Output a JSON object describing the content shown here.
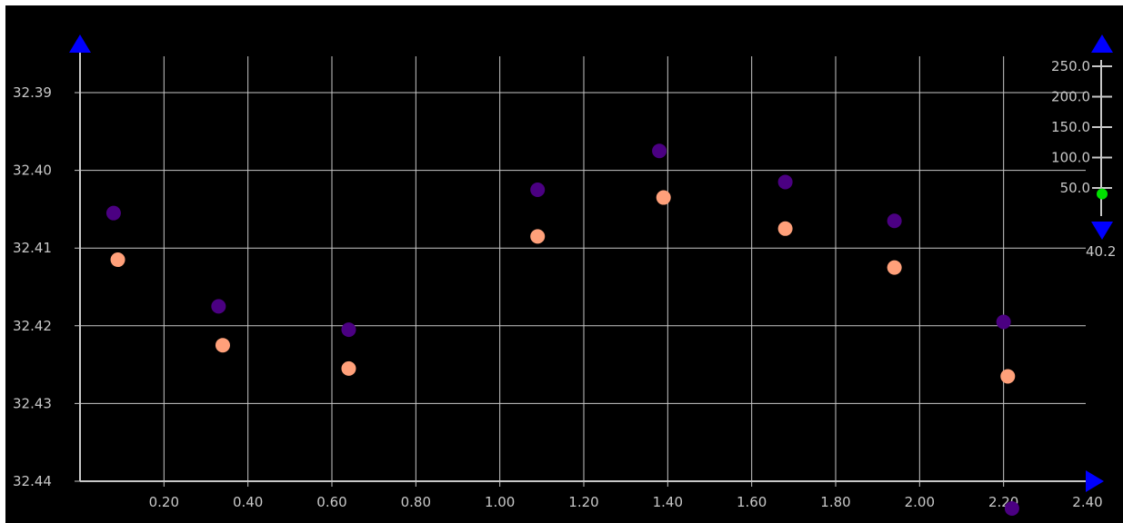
{
  "chart_data": {
    "type": "scatter",
    "title": "",
    "xlabel": "",
    "ylabel": "",
    "xlim": [
      0.0,
      2.4
    ],
    "ylim": [
      32.385,
      32.44
    ],
    "y_inverted": true,
    "grid": true,
    "x_ticks": [
      "0.20",
      "0.40",
      "0.60",
      "0.80",
      "1.00",
      "1.20",
      "1.40",
      "1.60",
      "1.80",
      "2.00",
      "2.20",
      "2.40"
    ],
    "y_ticks": [
      "32.39",
      "32.40",
      "32.41",
      "32.42",
      "32.43",
      "32.44"
    ],
    "series": [
      {
        "color": "#4b0082",
        "points": [
          [
            0.08,
            32.4055
          ],
          [
            0.33,
            32.4175
          ],
          [
            0.64,
            32.4205
          ],
          [
            1.09,
            32.4025
          ],
          [
            1.38,
            32.3975
          ],
          [
            1.68,
            32.4015
          ],
          [
            1.94,
            32.4065
          ],
          [
            2.2,
            32.4195
          ],
          [
            2.22,
            32.4435
          ]
        ]
      },
      {
        "color": "#ffa07a",
        "points": [
          [
            0.09,
            32.4115
          ],
          [
            0.34,
            32.4225
          ],
          [
            0.64,
            32.4255
          ],
          [
            1.09,
            32.4085
          ],
          [
            1.39,
            32.4035
          ],
          [
            1.68,
            32.4075
          ],
          [
            1.94,
            32.4125
          ],
          [
            2.21,
            32.4265
          ]
        ]
      }
    ],
    "side_scale": {
      "labels": [
        "250.0",
        "200.0",
        "150.0",
        "100.0",
        "50.0"
      ],
      "values": [
        250,
        200,
        150,
        100,
        50
      ],
      "current_value_label": "40.2",
      "current_value": 40.2,
      "marker_color": "#00e000"
    },
    "arrow_color": "#0000ff"
  }
}
